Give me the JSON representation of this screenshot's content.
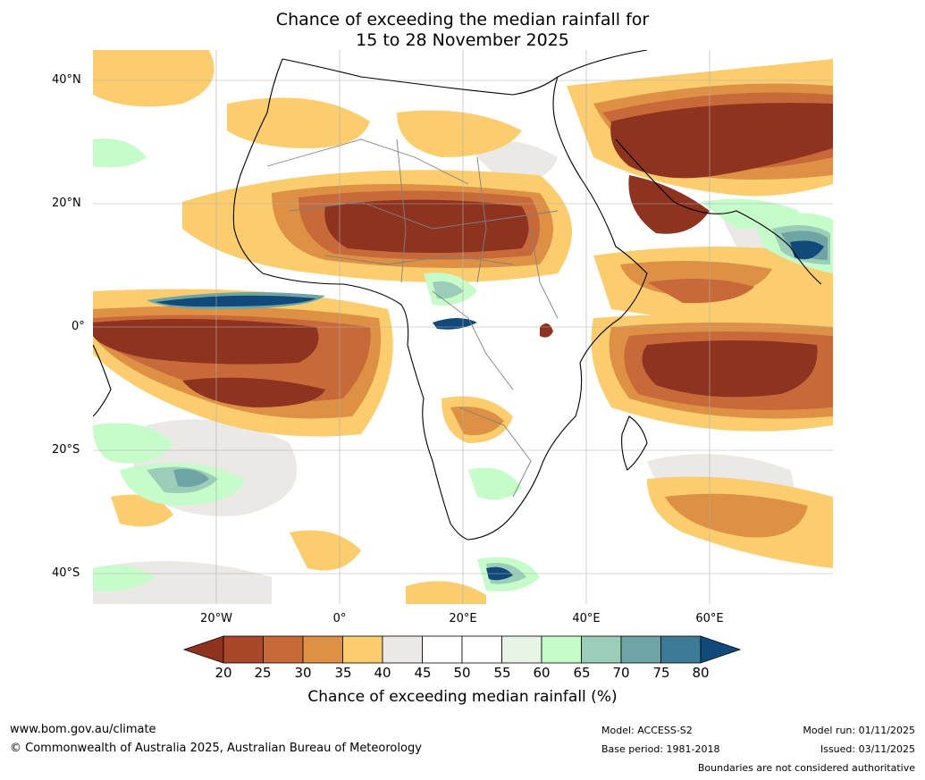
{
  "header": {
    "title_line1": "Chance of exceeding the median rainfall for",
    "title_line2": "15 to 28 November 2025"
  },
  "axes": {
    "lat_labels": [
      "40°N",
      "20°N",
      "0°",
      "20°S",
      "40°S"
    ],
    "lon_labels": [
      "20°W",
      "0°",
      "20°E",
      "40°E",
      "60°E"
    ]
  },
  "colorbar": {
    "ticks": [
      "20",
      "25",
      "30",
      "35",
      "40",
      "45",
      "50",
      "55",
      "60",
      "65",
      "70",
      "75",
      "80"
    ],
    "colors": [
      "#a8472a",
      "#c8693a",
      "#de9144",
      "#fbcd6e",
      "#ebe9e6",
      "#ffffff",
      "#ffffff",
      "#e6f5e6",
      "#c6fbca",
      "#9bcdb8",
      "#6fa4a5",
      "#3d7a98"
    ],
    "under_color": "#8e3320",
    "over_color": "#11497a",
    "title": "Chance of exceeding median rainfall (%)"
  },
  "footer": {
    "website": "www.bom.gov.au/climate",
    "copyright": "© Commonwealth of Australia 2025, Australian Bureau of Meteorology",
    "model": "Model: ACCESS-S2",
    "base_period": "Base period: 1981-2018",
    "model_run": "Model run: 01/11/2025",
    "issued": "Issued: 03/11/2025",
    "disclaimer": "Boundaries are not considered authoritative"
  },
  "palette": {
    "dry_strong": "#8e3320",
    "dry": "#c8693a",
    "dry_light": "#fbcd6e",
    "neutral": "#ebe9e6",
    "wet_light": "#c6fbca",
    "wet": "#6fa4a5",
    "wet_strong": "#11497a"
  }
}
